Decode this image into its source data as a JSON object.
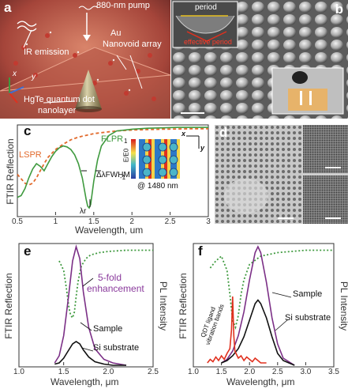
{
  "colors": {
    "green": "#3f9a3f",
    "orange": "#e26a2c",
    "purple": "#7b2f86",
    "black": "#111111",
    "red": "#e0301e",
    "annot_purple": "#8a3a9c"
  },
  "panel_a": {
    "label": "a",
    "pump": "880-nm pump",
    "au": "Au",
    "array": "Nanovoid array",
    "ir": "IR emission",
    "axis_x": "x",
    "axis_y": "y",
    "qd_line1": "HgTe quantum dot",
    "qd_line2": "nanolayer"
  },
  "panel_b": {
    "label": "b",
    "period": "period",
    "effective_period": "effective period"
  },
  "panel_c": {
    "label": "c",
    "ylabel": "FTIR Reflection",
    "xlabel": "Wavelength, um",
    "lspr": "LSPR",
    "flpr": "FLPR",
    "fwhm": "ΔλFWHM",
    "lambda_r": "λr",
    "inset_at": "@ 1480 nm",
    "inset_axis_x": "x",
    "inset_axis_y": "y",
    "inset_cb_label": "E/E0",
    "cb_top": "1",
    "cb_bottom": "-1"
  },
  "panel_d": {
    "label": "d"
  },
  "panel_e": {
    "label": "e",
    "ylabel_left": "FTIR Reflection",
    "ylabel_right": "PL Intensity",
    "xlabel": "Wavelength, μm",
    "annotation_line1": "5-fold",
    "annotation_line2": "enhancement",
    "sample": "Sample",
    "si_substrate": "Si substrate"
  },
  "panel_f": {
    "label": "f",
    "ylabel_left": "FTIR Reflection",
    "ylabel_right": "PL Intensity",
    "xlabel": "Wavelength, μm",
    "ligand_line1": "QDT ligand",
    "ligand_line2": "vibration bands",
    "sample": "Sample",
    "si_substrate": "Si substrate"
  },
  "chart_data": [
    {
      "type": "line",
      "panel": "c",
      "xlabel": "Wavelength, um",
      "ylabel": "FTIR Reflection",
      "xlim": [
        0.5,
        3.0
      ],
      "xticks": [
        "0.5",
        "1",
        "1.5",
        "2",
        "2.5",
        "3"
      ],
      "series": [
        {
          "name": "LSPR",
          "style": "dashed",
          "color": "#e26a2c",
          "x": [
            0.5,
            0.55,
            0.6,
            0.65,
            0.7,
            0.75,
            0.8,
            0.85,
            0.9,
            1.0,
            1.1,
            1.2,
            1.3,
            1.4,
            1.5,
            1.6,
            1.7,
            1.8,
            2.0,
            2.2,
            2.4,
            2.6,
            2.8,
            3.0
          ],
          "y": [
            0.46,
            0.41,
            0.36,
            0.34,
            0.36,
            0.42,
            0.5,
            0.58,
            0.65,
            0.74,
            0.8,
            0.85,
            0.88,
            0.9,
            0.92,
            0.93,
            0.94,
            0.95,
            0.96,
            0.965,
            0.97,
            0.972,
            0.975,
            0.975
          ]
        },
        {
          "name": "FLPR",
          "style": "solid",
          "color": "#3f9a3f",
          "x": [
            0.5,
            0.55,
            0.6,
            0.65,
            0.7,
            0.75,
            0.8,
            0.85,
            0.9,
            0.95,
            1.0,
            1.05,
            1.1,
            1.15,
            1.2,
            1.25,
            1.3,
            1.35,
            1.4,
            1.42,
            1.44,
            1.46,
            1.5,
            1.55,
            1.6,
            1.7,
            1.8,
            2.0,
            2.2,
            2.4,
            2.6,
            2.8,
            3.0
          ],
          "y": [
            0.2,
            0.22,
            0.3,
            0.42,
            0.52,
            0.58,
            0.55,
            0.5,
            0.58,
            0.66,
            0.72,
            0.76,
            0.78,
            0.77,
            0.74,
            0.68,
            0.58,
            0.42,
            0.18,
            0.1,
            0.08,
            0.12,
            0.38,
            0.62,
            0.78,
            0.9,
            0.95,
            0.97,
            0.98,
            0.985,
            0.99,
            0.99,
            0.99
          ]
        }
      ]
    },
    {
      "type": "line",
      "panel": "e",
      "xlabel": "Wavelength, μm",
      "xlim": [
        1.0,
        2.5
      ],
      "xticks": [
        "1.0",
        "1.5",
        "2.0",
        "2.5"
      ],
      "series": [
        {
          "name": "FTIR Reflection",
          "style": "dotted",
          "color": "#3f9a3f",
          "x": [
            1.45,
            1.5,
            1.53,
            1.56,
            1.58,
            1.6,
            1.62,
            1.64,
            1.66,
            1.68,
            1.7,
            1.75,
            1.8,
            1.9,
            2.0,
            2.2,
            2.5
          ],
          "y": [
            0.88,
            0.8,
            0.65,
            0.48,
            0.42,
            0.4,
            0.45,
            0.58,
            0.7,
            0.78,
            0.84,
            0.9,
            0.93,
            0.95,
            0.96,
            0.97,
            0.97
          ]
        },
        {
          "name": "Sample",
          "style": "solid",
          "color": "#7b2f86",
          "x": [
            1.4,
            1.45,
            1.5,
            1.55,
            1.6,
            1.64,
            1.68,
            1.72,
            1.78,
            1.85,
            1.95,
            2.05,
            2.2
          ],
          "y": [
            0.02,
            0.08,
            0.25,
            0.55,
            0.88,
            1.0,
            0.9,
            0.62,
            0.32,
            0.14,
            0.05,
            0.02,
            0.0
          ]
        },
        {
          "name": "Si substrate",
          "style": "solid",
          "color": "#111111",
          "x": [
            1.4,
            1.45,
            1.5,
            1.55,
            1.6,
            1.64,
            1.68,
            1.72,
            1.78,
            1.85,
            1.95,
            2.05,
            2.2
          ],
          "y": [
            0.01,
            0.02,
            0.06,
            0.12,
            0.18,
            0.2,
            0.18,
            0.13,
            0.07,
            0.03,
            0.01,
            0.0,
            0.0
          ]
        }
      ]
    },
    {
      "type": "line",
      "panel": "f",
      "xlabel": "Wavelength, μm",
      "xlim": [
        1.0,
        3.5
      ],
      "xticks": [
        "1.0",
        "1.5",
        "2.0",
        "2.5",
        "3.0",
        "3.5"
      ],
      "series": [
        {
          "name": "FTIR Reflection",
          "style": "dotted",
          "color": "#3f9a3f",
          "x": [
            1.3,
            1.4,
            1.5,
            1.6,
            1.65,
            1.7,
            1.75,
            1.8,
            1.85,
            1.9,
            2.0,
            2.2,
            2.5,
            3.0,
            3.5
          ],
          "y": [
            0.82,
            0.88,
            0.92,
            0.8,
            0.6,
            0.38,
            0.32,
            0.42,
            0.6,
            0.72,
            0.85,
            0.92,
            0.95,
            0.97,
            0.97
          ]
        },
        {
          "name": "Sample",
          "style": "solid",
          "color": "#7b2f86",
          "x": [
            1.5,
            1.6,
            1.7,
            1.8,
            1.9,
            2.0,
            2.1,
            2.15,
            2.2,
            2.3,
            2.4,
            2.5,
            2.6,
            2.8
          ],
          "y": [
            0.02,
            0.05,
            0.12,
            0.25,
            0.45,
            0.72,
            0.95,
            1.0,
            0.95,
            0.7,
            0.4,
            0.18,
            0.06,
            0.0
          ]
        },
        {
          "name": "Si substrate",
          "style": "solid",
          "color": "#111111",
          "x": [
            1.5,
            1.6,
            1.7,
            1.8,
            1.9,
            2.0,
            2.1,
            2.15,
            2.2,
            2.3,
            2.4,
            2.5,
            2.6,
            2.8
          ],
          "y": [
            0.02,
            0.04,
            0.08,
            0.14,
            0.24,
            0.38,
            0.52,
            0.55,
            0.52,
            0.4,
            0.24,
            0.1,
            0.04,
            0.0
          ]
        },
        {
          "name": "QDT ligand vibration bands",
          "style": "solid",
          "color": "#e0301e",
          "x": [
            1.25,
            1.3,
            1.35,
            1.4,
            1.45,
            1.5,
            1.55,
            1.6,
            1.65,
            1.68,
            1.7,
            1.72,
            1.74,
            1.76,
            1.8,
            1.85,
            1.9,
            1.95,
            2.0,
            2.05,
            2.1,
            2.15,
            2.2,
            2.3
          ],
          "y": [
            0.02,
            0.05,
            0.03,
            0.07,
            0.04,
            0.08,
            0.05,
            0.1,
            0.14,
            0.3,
            0.58,
            0.25,
            0.12,
            0.1,
            0.06,
            0.08,
            0.04,
            0.07,
            0.05,
            0.03,
            0.06,
            0.04,
            0.02,
            0.02
          ]
        }
      ]
    }
  ]
}
